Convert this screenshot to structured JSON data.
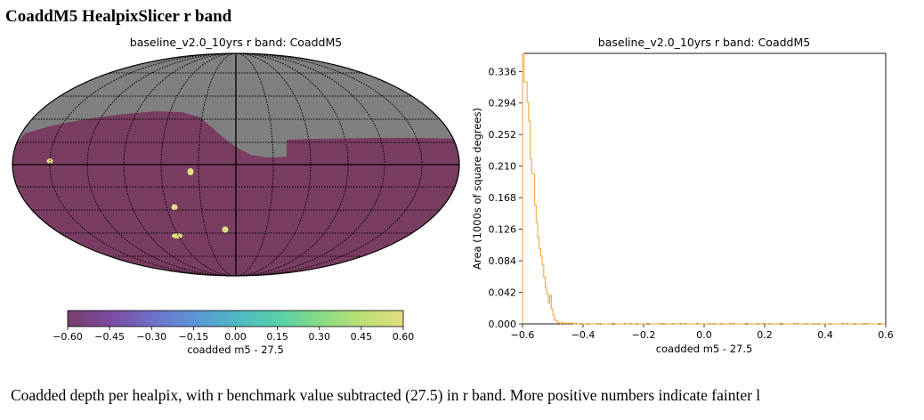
{
  "page": {
    "title": "CoaddM5 HealpixSlicer r band",
    "caption": "Coadded depth per healpix, with r benchmark value subtracted (27.5) in r band. More positive numbers indicate fainter l"
  },
  "skymap": {
    "title": "baseline_v2.0_10yrs r band: CoaddM5",
    "colorbar_label": "coadded m5 - 27.5",
    "colorbar_ticks": [
      "−0.60",
      "−0.45",
      "−0.30",
      "−0.15",
      "0.00",
      "0.15",
      "0.30",
      "0.45",
      "0.60"
    ],
    "colorbar_range": [
      -0.6,
      0.6
    ],
    "colormap": "viridis",
    "alpha": 0.75,
    "colors": {
      "no_data": "#808080",
      "main_survey": "#7a3d62",
      "hotspot": "#e2dd82",
      "grid": "#000000"
    }
  },
  "chart_data": {
    "type": "histogram",
    "title": "baseline_v2.0_10yrs r band: CoaddM5",
    "xlabel": "coadded m5 - 27.5",
    "ylabel": "Area (1000s of square degrees)",
    "xlim": [
      -0.6,
      0.6
    ],
    "ylim": [
      0,
      0.36
    ],
    "xticks": [
      -0.6,
      -0.4,
      -0.2,
      0.0,
      0.2,
      0.4,
      0.6
    ],
    "xtick_labels": [
      "−0.6",
      "−0.4",
      "−0.2",
      "0.0",
      "0.2",
      "0.4",
      "0.6"
    ],
    "yticks": [
      0.0,
      0.042,
      0.084,
      0.126,
      0.168,
      0.21,
      0.252,
      0.294,
      0.336
    ],
    "ytick_labels": [
      "0.000",
      "0.042",
      "0.084",
      "0.126",
      "0.168",
      "0.210",
      "0.252",
      "0.294",
      "0.336"
    ],
    "line_color": "#f0a030",
    "bin_width": 0.005,
    "bin_start": -0.6,
    "values": [
      0.36,
      0.322,
      0.322,
      0.295,
      0.27,
      0.22,
      0.2,
      0.2,
      0.158,
      0.135,
      0.115,
      0.1,
      0.09,
      0.078,
      0.062,
      0.048,
      0.04,
      0.028,
      0.038,
      0.02,
      0.012,
      0.006,
      0.004,
      0.002,
      0.001,
      0.0005,
      0.002,
      0.0005,
      0.001,
      0.0005,
      0.001,
      0.0005,
      0.001,
      0.0005
    ]
  }
}
